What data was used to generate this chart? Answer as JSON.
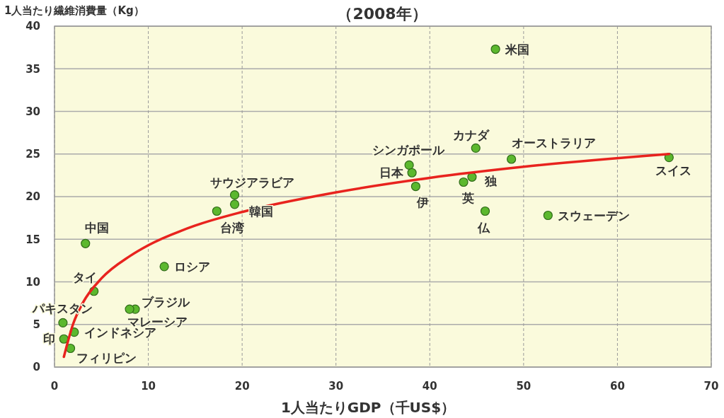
{
  "chart_data": {
    "type": "scatter",
    "title": "（2008年）",
    "ylabel": "1人当たり繊維消費量（Kg）",
    "xlabel": "1人当たりGDP（千US$）",
    "xlim": [
      0,
      70
    ],
    "xticks": [
      0,
      10,
      20,
      30,
      40,
      50,
      60,
      70
    ],
    "ylim": [
      0,
      40
    ],
    "yticks": [
      0,
      5,
      10,
      15,
      20,
      25,
      30,
      35,
      40
    ],
    "grid": true,
    "series": [
      {
        "marker": "circle",
        "color": "#5cb82e",
        "x": [
          47.0,
          44.9,
          48.7,
          65.5,
          37.8,
          38.1,
          38.5,
          44.5,
          43.6,
          45.9,
          52.6,
          19.2,
          19.2,
          17.3,
          3.3,
          11.7,
          4.2,
          8.6,
          8.0,
          0.9,
          2.1,
          1.0,
          1.7
        ],
        "values": [
          37.3,
          25.7,
          24.4,
          24.6,
          23.7,
          22.8,
          21.2,
          22.3,
          21.7,
          18.3,
          17.8,
          20.2,
          19.1,
          18.3,
          14.5,
          11.8,
          8.9,
          6.8,
          6.8,
          5.2,
          4.1,
          3.3,
          2.2
        ]
      },
      {
        "type": "line",
        "color": "#e8231e",
        "x": [
          1,
          2,
          3,
          5,
          8,
          10,
          15,
          20,
          30,
          40,
          50,
          65.5
        ],
        "values": [
          1.2,
          5.1,
          7.5,
          10.4,
          13.0,
          14.3,
          16.6,
          18.2,
          20.5,
          22.2,
          23.5,
          25.0
        ]
      }
    ],
    "annotations": [
      {
        "text": "米国",
        "x": 47.0,
        "y": 37.3
      },
      {
        "text": "カナダ",
        "x": 44.9,
        "y": 25.7
      },
      {
        "text": "オーストラリア",
        "x": 48.7,
        "y": 24.4
      },
      {
        "text": "スイス",
        "x": 65.5,
        "y": 24.6
      },
      {
        "text": "シンガポール",
        "x": 37.8,
        "y": 23.7
      },
      {
        "text": "日本",
        "x": 38.1,
        "y": 22.8
      },
      {
        "text": "伊",
        "x": 38.5,
        "y": 21.2
      },
      {
        "text": "独",
        "x": 44.5,
        "y": 22.3
      },
      {
        "text": "英",
        "x": 43.6,
        "y": 21.7
      },
      {
        "text": "仏",
        "x": 45.9,
        "y": 18.3
      },
      {
        "text": "スウェーデン",
        "x": 52.6,
        "y": 17.8
      },
      {
        "text": "サウジアラビア",
        "x": 19.2,
        "y": 20.2
      },
      {
        "text": "韓国",
        "x": 19.2,
        "y": 19.1
      },
      {
        "text": "台湾",
        "x": 17.3,
        "y": 18.3
      },
      {
        "text": "中国",
        "x": 3.3,
        "y": 14.5
      },
      {
        "text": "ロシア",
        "x": 11.7,
        "y": 11.8
      },
      {
        "text": "タイ",
        "x": 4.2,
        "y": 8.9
      },
      {
        "text": "ブラジル",
        "x": 8.6,
        "y": 6.8
      },
      {
        "text": "マレーシア",
        "x": 8.0,
        "y": 6.8
      },
      {
        "text": "パキスタン",
        "x": 0.9,
        "y": 5.2
      },
      {
        "text": "インドネシア",
        "x": 2.1,
        "y": 4.1
      },
      {
        "text": "印",
        "x": 1.0,
        "y": 3.3
      },
      {
        "text": "フィリピン",
        "x": 1.7,
        "y": 2.2
      }
    ]
  }
}
